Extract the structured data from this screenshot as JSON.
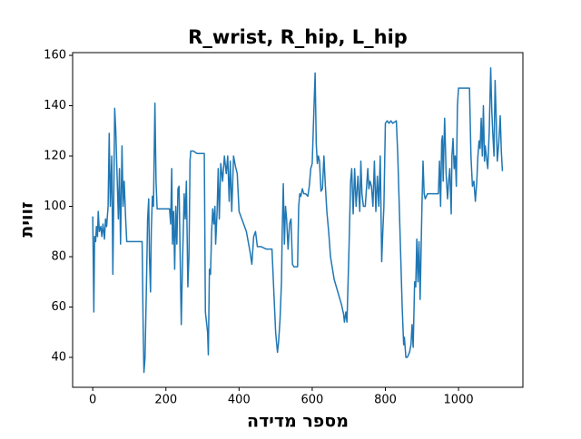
{
  "chart_data": {
    "type": "line",
    "title": "R_wrist, R_hip, L_hip",
    "x_label": "מספר מדידה",
    "y_label": "זווית",
    "x": [
      0,
      3,
      5,
      8,
      10,
      13,
      15,
      18,
      22,
      25,
      28,
      32,
      35,
      38,
      42,
      45,
      48,
      52,
      55,
      58,
      60,
      63,
      66,
      70,
      73,
      76,
      80,
      83,
      86,
      90,
      93,
      100,
      120,
      135,
      138,
      140,
      143,
      147,
      150,
      153,
      155,
      158,
      160,
      163,
      166,
      170,
      173,
      176,
      190,
      210,
      213,
      216,
      218,
      221,
      224,
      227,
      230,
      233,
      236,
      239,
      242,
      245,
      250,
      253,
      256,
      260,
      263,
      266,
      268,
      275,
      285,
      300,
      305,
      308,
      311,
      314,
      316,
      319,
      322,
      325,
      328,
      331,
      334,
      336,
      340,
      343,
      346,
      350,
      355,
      360,
      365,
      369,
      373,
      376,
      380,
      385,
      390,
      395,
      400,
      405,
      410,
      420,
      425,
      430,
      435,
      440,
      445,
      450,
      460,
      475,
      490,
      500,
      505,
      508,
      512,
      516,
      518,
      521,
      524,
      527,
      530,
      534,
      538,
      542,
      546,
      550,
      560,
      563,
      566,
      569,
      573,
      577,
      582,
      588,
      592,
      596,
      600,
      605,
      608,
      611,
      614,
      617,
      620,
      624,
      628,
      632,
      636,
      640,
      645,
      650,
      660,
      670,
      680,
      686,
      688,
      692,
      695,
      700,
      705,
      708,
      712,
      716,
      720,
      725,
      730,
      733,
      736,
      740,
      745,
      752,
      755,
      758,
      762,
      766,
      770,
      774,
      778,
      782,
      786,
      790,
      793,
      796,
      800,
      805,
      810,
      815,
      820,
      830,
      834,
      838,
      842,
      846,
      850,
      852,
      856,
      860,
      866,
      870,
      873,
      876,
      880,
      883,
      886,
      889,
      892,
      895,
      898,
      900,
      903,
      906,
      909,
      915,
      925,
      945,
      948,
      951,
      954,
      956,
      958,
      962,
      964,
      966,
      970,
      973,
      976,
      980,
      982,
      985,
      988,
      991,
      994,
      997,
      1000,
      1010,
      1020,
      1030,
      1034,
      1038,
      1042,
      1046,
      1050,
      1053,
      1056,
      1059,
      1062,
      1065,
      1068,
      1071,
      1073,
      1076,
      1080,
      1084,
      1088,
      1091,
      1094,
      1097,
      1100,
      1103,
      1106,
      1110,
      1114,
      1117,
      1120
    ],
    "series": [
      {
        "color": "#1f77b4",
        "values": [
          96,
          58,
          88,
          86,
          92,
          88,
          98,
          90,
          92,
          88,
          93,
          87,
          95,
          92,
          100,
          129,
          100,
          120,
          73,
          110,
          139,
          130,
          115,
          95,
          115,
          85,
          124,
          100,
          110,
          95,
          86,
          86,
          86,
          86,
          50,
          34,
          40,
          70,
          95,
          103,
          80,
          66,
          90,
          104,
          100,
          141,
          110,
          99,
          99,
          99,
          93,
          115,
          85,
          98,
          75,
          100,
          85,
          107,
          108,
          80,
          53,
          75,
          105,
          95,
          110,
          68,
          80,
          118,
          122,
          122,
          121,
          121,
          121,
          58,
          54,
          50,
          41,
          75,
          73,
          90,
          99,
          93,
          100,
          85,
          98,
          115,
          95,
          117,
          110,
          120,
          113,
          120,
          102,
          118,
          98,
          120,
          116,
          113,
          98,
          96,
          94,
          90,
          86,
          82,
          77,
          88,
          90,
          84,
          84,
          83,
          83,
          50,
          42,
          46,
          55,
          70,
          90,
          109,
          85,
          100,
          95,
          83,
          93,
          95,
          77,
          76,
          76,
          100,
          105,
          104,
          107,
          105,
          105,
          104,
          108,
          115,
          117,
          140,
          153,
          125,
          117,
          120,
          118,
          106,
          107,
          120,
          108,
          98,
          90,
          80,
          71,
          66,
          61,
          57,
          54,
          58,
          54,
          80,
          110,
          115,
          97,
          115,
          100,
          112,
          98,
          118,
          105,
          100,
          100,
          115,
          107,
          110,
          108,
          100,
          118,
          98,
          112,
          100,
          120,
          78,
          90,
          100,
          133,
          134,
          133,
          134,
          133,
          134,
          120,
          100,
          80,
          60,
          45,
          48,
          40,
          40,
          42,
          45,
          53,
          44,
          70,
          68,
          87,
          70,
          86,
          63,
          85,
          100,
          118,
          105,
          103,
          105,
          105,
          105,
          118,
          100,
          126,
          128,
          110,
          135,
          125,
          113,
          103,
          110,
          115,
          97,
          120,
          127,
          115,
          120,
          108,
          140,
          147,
          147,
          147,
          147,
          120,
          108,
          110,
          102,
          110,
          120,
          126,
          123,
          135,
          120,
          140,
          118,
          124,
          120,
          115,
          130,
          155,
          138,
          128,
          120,
          150,
          135,
          118,
          125,
          136,
          122,
          114
        ]
      }
    ],
    "xlim": [
      -55,
      1176
    ],
    "ylim": [
      28.1,
      161.1
    ],
    "xticks": [
      0,
      200,
      400,
      600,
      800,
      1000
    ],
    "yticks": [
      40,
      60,
      80,
      100,
      120,
      140,
      160
    ]
  }
}
